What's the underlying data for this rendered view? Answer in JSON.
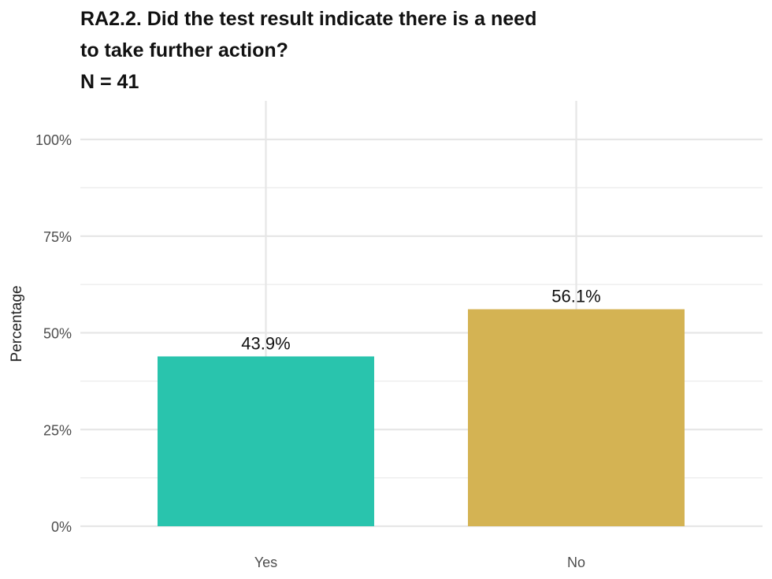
{
  "title_lines": [
    "RA2.2. Did the test result indicate there is a need",
    "to take further action?",
    "N = 41"
  ],
  "chart_data": {
    "type": "bar",
    "categories": [
      "Yes",
      "No"
    ],
    "values": [
      43.9,
      56.1
    ],
    "data_labels": [
      "43.9%",
      "56.1%"
    ],
    "bar_colors": [
      "#29c4ad",
      "#d4b353"
    ],
    "ylabel": "Percentage",
    "xlabel": "",
    "ylim": [
      0,
      110
    ],
    "yticks": [
      0,
      25,
      50,
      75,
      100
    ],
    "ytick_labels": [
      "0%",
      "25%",
      "50%",
      "75%",
      "100%"
    ],
    "grid": true,
    "legend": "none"
  }
}
